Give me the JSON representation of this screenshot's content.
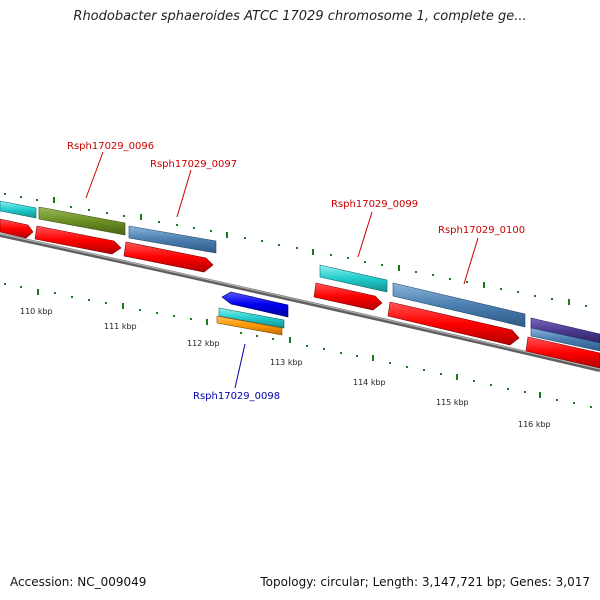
{
  "title": "Rhodobacter sphaeroides ATCC 17029 chromosome 1, complete ge...",
  "footer": {
    "accession": "Accession: NC_009049",
    "topology": "Topology: circular; Length: 3,147,721 bp; Genes: 3,017"
  },
  "ticks": [
    "110 kbp",
    "111 kbp",
    "112 kbp",
    "113 kbp",
    "114 kbp",
    "115 kbp",
    "116 kbp"
  ],
  "gene_labels": [
    {
      "text": "Rsph17029_0096",
      "color": "#cc0000"
    },
    {
      "text": "Rsph17029_0097",
      "color": "#cc0000"
    },
    {
      "text": "Rsph17029_0098",
      "color": "#0000aa"
    },
    {
      "text": "Rsph17029_0099",
      "color": "#cc0000"
    },
    {
      "text": "Rsph17029_0100",
      "color": "#cc0000"
    }
  ],
  "colors": {
    "cds_red": "#ff0000",
    "rna_cyan": "#22cccc",
    "olive": "#6b8e23",
    "steel_blue": "#4a7fb0",
    "indigo": "#4b3a8f",
    "blue": "#0000ee",
    "orange": "#ff9900",
    "backbone": "#808080",
    "tick_green": "#1a7a1a"
  }
}
